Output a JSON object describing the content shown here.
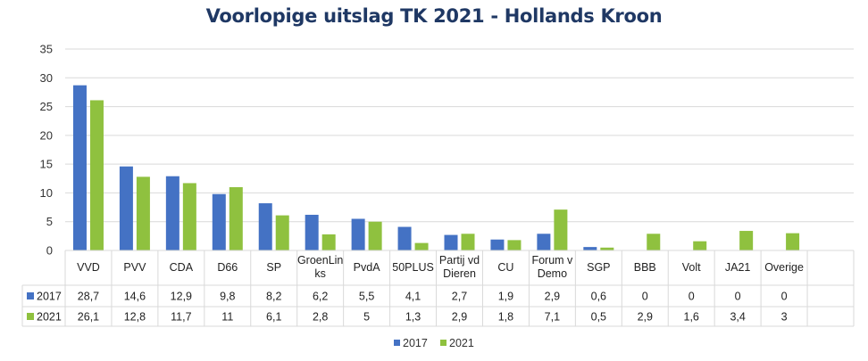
{
  "colors": {
    "2017": "#4472c4",
    "2021": "#8fc13f",
    "grid": "#d9d9d9",
    "title": "#1f3864"
  },
  "chart_data": {
    "type": "bar",
    "title": "Voorlopige uitslag TK 2021 - Hollands Kroon",
    "xlabel": "",
    "ylabel": "",
    "ylim": [
      0,
      35
    ],
    "yticks": [
      0,
      5,
      10,
      15,
      20,
      25,
      30,
      35
    ],
    "grid": true,
    "legend": "bottom",
    "categories": [
      "VVD",
      "PVV",
      "CDA",
      "D66",
      "SP",
      "GroenLinks",
      "PvdA",
      "50PLUS",
      "Partij vd Dieren",
      "CU",
      "Forum v Demo",
      "SGP",
      "BBB",
      "Volt",
      "JA21",
      "Overige"
    ],
    "category_lines": [
      [
        "VVD"
      ],
      [
        "PVV"
      ],
      [
        "CDA"
      ],
      [
        "D66"
      ],
      [
        "SP"
      ],
      [
        "GroenLin",
        "ks"
      ],
      [
        "PvdA"
      ],
      [
        "50PLUS"
      ],
      [
        "Partij vd",
        "Dieren"
      ],
      [
        "CU"
      ],
      [
        "Forum v",
        "Demo"
      ],
      [
        "SGP"
      ],
      [
        "BBB"
      ],
      [
        "Volt"
      ],
      [
        "JA21"
      ],
      [
        "Overige"
      ]
    ],
    "series": [
      {
        "name": "2017",
        "values": [
          28.7,
          14.6,
          12.9,
          9.8,
          8.2,
          6.2,
          5.5,
          4.1,
          2.7,
          1.9,
          2.9,
          0.6,
          0,
          0,
          0,
          0
        ],
        "labels": [
          "28,7",
          "14,6",
          "12,9",
          "9,8",
          "8,2",
          "6,2",
          "5,5",
          "4,1",
          "2,7",
          "1,9",
          "2,9",
          "0,6",
          "0",
          "0",
          "0",
          "0"
        ]
      },
      {
        "name": "2021",
        "values": [
          26.1,
          12.8,
          11.7,
          11,
          6.1,
          2.8,
          5,
          1.3,
          2.9,
          1.8,
          7.1,
          0.5,
          2.9,
          1.6,
          3.4,
          3
        ],
        "labels": [
          "26,1",
          "12,8",
          "11,7",
          "11",
          "6,1",
          "2,8",
          "5",
          "1,3",
          "2,9",
          "1,8",
          "7,1",
          "0,5",
          "2,9",
          "1,6",
          "3,4",
          "3"
        ]
      }
    ]
  }
}
